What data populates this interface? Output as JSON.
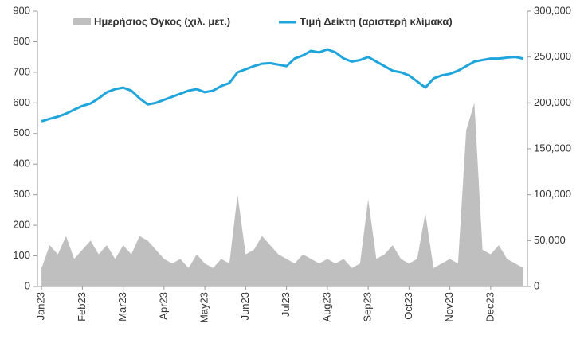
{
  "chart_data": {
    "type": "line",
    "categories": [
      "Jan23",
      null,
      null,
      null,
      null,
      "Feb23",
      null,
      null,
      null,
      null,
      "Mar23",
      null,
      null,
      null,
      null,
      "Apr23",
      null,
      null,
      null,
      null,
      "May23",
      null,
      null,
      null,
      null,
      "Jun23",
      null,
      null,
      null,
      null,
      "Jul23",
      null,
      null,
      null,
      null,
      "Aug23",
      null,
      null,
      null,
      null,
      "Sep23",
      null,
      null,
      null,
      null,
      "Oct23",
      null,
      null,
      null,
      null,
      "Nov23",
      null,
      null,
      null,
      null,
      "Dec23",
      null,
      null,
      null,
      null
    ],
    "series": [
      {
        "name": "Ημερήσιος Όγκος (χιλ. μετ.)",
        "type": "area",
        "axis": "y2",
        "color": "#bfbfbf",
        "values": [
          20000,
          45000,
          35000,
          55000,
          30000,
          40000,
          50000,
          35000,
          45000,
          30000,
          45000,
          35000,
          55000,
          50000,
          40000,
          30000,
          25000,
          30000,
          20000,
          35000,
          25000,
          20000,
          30000,
          25000,
          100000,
          35000,
          40000,
          55000,
          45000,
          35000,
          30000,
          25000,
          35000,
          30000,
          25000,
          30000,
          25000,
          30000,
          20000,
          25000,
          95000,
          30000,
          35000,
          45000,
          30000,
          25000,
          30000,
          80000,
          20000,
          25000,
          30000,
          25000,
          170000,
          200000,
          40000,
          35000,
          45000,
          30000,
          25000,
          20000
        ]
      },
      {
        "name": "Τιμή Δείκτη (αριστερή κλίμακα)",
        "type": "line",
        "color": "#1ea5dc",
        "values": [
          540,
          548,
          555,
          565,
          578,
          590,
          598,
          615,
          635,
          645,
          650,
          640,
          615,
          595,
          600,
          610,
          620,
          630,
          640,
          645,
          635,
          640,
          655,
          665,
          700,
          710,
          720,
          728,
          730,
          725,
          720,
          745,
          755,
          770,
          765,
          775,
          765,
          745,
          735,
          740,
          750,
          735,
          720,
          705,
          700,
          690,
          670,
          650,
          680,
          690,
          695,
          705,
          720,
          735,
          740,
          745,
          745,
          748,
          750,
          745
        ]
      }
    ],
    "ylim": [
      0,
      900
    ],
    "yticks": [
      0,
      100,
      200,
      300,
      400,
      500,
      600,
      700,
      800,
      900
    ],
    "y2lim": [
      0,
      300000
    ],
    "y2ticks": [
      0,
      {
        "value": 50000,
        "label": "50,000"
      },
      {
        "value": 100000,
        "label": "100,000"
      },
      {
        "value": 150000,
        "label": "150,000"
      },
      {
        "value": 200000,
        "label": "200,000"
      },
      {
        "value": 250000,
        "label": "250,000"
      },
      {
        "value": 300000,
        "label": "300,000"
      }
    ],
    "legend": "top"
  }
}
